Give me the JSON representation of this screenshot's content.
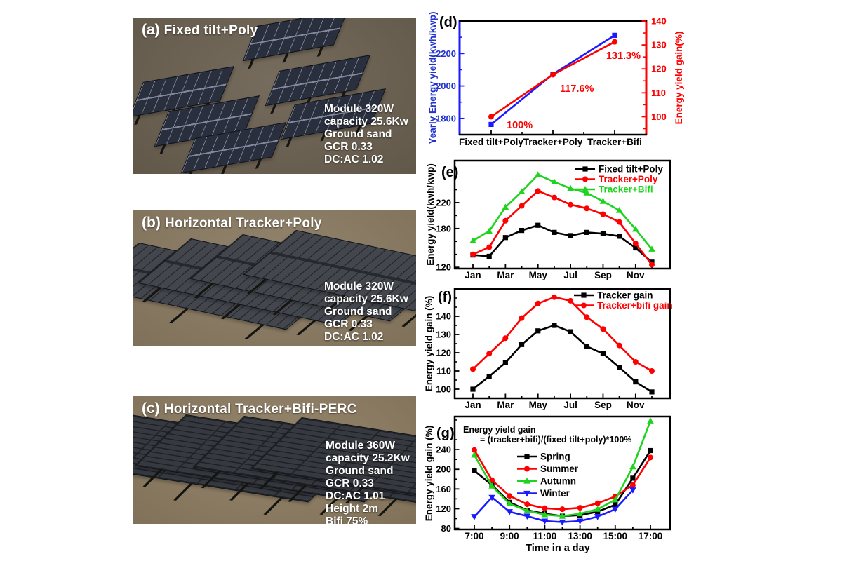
{
  "colors": {
    "blue": "#1a1aff",
    "blue_label": "#2233cc",
    "red": "#ff0000",
    "green": "#1fd41f",
    "black": "#000000",
    "white_text": "#ffffff"
  },
  "figure": {
    "panels": [
      {
        "id": "a",
        "label": "(a)",
        "title": "Fixed tilt+Poly",
        "specs": [
          "Module 320W",
          "capacity 25.6Kw",
          "Ground sand",
          "GCR 0.33",
          "DC:AC 1.02"
        ]
      },
      {
        "id": "b",
        "label": "(b)",
        "title": "Horizontal Tracker+Poly",
        "specs": [
          "Module 320W",
          "capacity 25.6Kw",
          "Ground sand",
          "GCR 0.33",
          "DC:AC 1.02"
        ]
      },
      {
        "id": "c",
        "label": "(c)",
        "title": "Horizontal Tracker+Bifi-PERC",
        "specs": [
          "Module 360W",
          "capacity 25.2Kw",
          "Ground sand",
          "GCR 0.33",
          "DC:AC 1.01",
          "Height 2m",
          "Bifi 75%"
        ]
      }
    ]
  },
  "chart_data": [
    {
      "id": "d",
      "panel_label": "(d)",
      "type": "line",
      "categories": [
        "Fixed tilt+Poly",
        "Tracker+Poly",
        "Tracker+Bifi"
      ],
      "left_axis": {
        "label": "Yearly Energy yield(kwh/kwp)",
        "color": "#2233cc",
        "ticks": [
          1800,
          2000,
          2200
        ],
        "minor_ticks": [
          1700,
          1900,
          2100,
          2300
        ],
        "range": [
          1700,
          2400
        ]
      },
      "right_axis": {
        "label": "Energy yield gain(%)",
        "color": "#ff0000",
        "ticks": [
          100,
          110,
          120,
          130,
          140
        ],
        "minor_ticks": [
          95,
          105,
          115,
          125,
          135
        ],
        "range": [
          92.5,
          140
        ]
      },
      "series": [
        {
          "name": "Yearly Energy yield",
          "axis": "left",
          "color": "#1a1aff",
          "marker": "square",
          "values": [
            1763,
            2073,
            2312
          ]
        },
        {
          "name": "Energy yield gain",
          "axis": "right",
          "color": "#ff0000",
          "marker": "circle",
          "values": [
            100,
            117.6,
            131.3
          ]
        }
      ],
      "point_labels": [
        "100%",
        "117.6%",
        "131.3%"
      ],
      "point_label_color": "#ff0000"
    },
    {
      "id": "e",
      "panel_label": "(e)",
      "type": "line",
      "x": [
        "Jan",
        "Feb",
        "Mar",
        "Apr",
        "May",
        "Jun",
        "Jul",
        "Aug",
        "Sep",
        "Oct",
        "Nov",
        "Dec"
      ],
      "x_tick_labels": [
        "Jan",
        "Mar",
        "May",
        "Jul",
        "Sep",
        "Nov"
      ],
      "ylabel": "Energy yield(kwh/kwp)",
      "yticks": [
        120,
        180,
        220
      ],
      "minor_yticks": [
        140,
        160,
        200,
        240,
        260
      ],
      "ylim": [
        118,
        285
      ],
      "legend_position": "top-right",
      "series": [
        {
          "name": "Fixed tilt+Poly",
          "color": "#000000",
          "marker": "square",
          "values": [
            139,
            137,
            166,
            177,
            185,
            174,
            169,
            174,
            172,
            168,
            150,
            128
          ]
        },
        {
          "name": "Tracker+Poly",
          "color": "#ff0000",
          "marker": "circle",
          "values": [
            140,
            151,
            192,
            215,
            238,
            228,
            217,
            211,
            202,
            190,
            157,
            124
          ]
        },
        {
          "name": "Tracker+Bifi",
          "color": "#1fd41f",
          "marker": "triangle-up",
          "values": [
            161,
            176,
            213,
            237,
            263,
            252,
            242,
            235,
            222,
            208,
            179,
            148
          ]
        }
      ]
    },
    {
      "id": "f",
      "panel_label": "(f)",
      "type": "line",
      "x": [
        "Jan",
        "Feb",
        "Mar",
        "Apr",
        "May",
        "Jun",
        "Jul",
        "Aug",
        "Sep",
        "Oct",
        "Nov",
        "Dec"
      ],
      "x_tick_labels": [
        "Jan",
        "Mar",
        "May",
        "Jul",
        "Sep",
        "Nov"
      ],
      "ylabel": "Energy yield gain (%)",
      "yticks": [
        100,
        110,
        120,
        130,
        140
      ],
      "minor_yticks": [
        95,
        105,
        115,
        125,
        135,
        145,
        150
      ],
      "ylim": [
        95,
        155
      ],
      "legend_position": "top-right",
      "series": [
        {
          "name": "Tracker gain",
          "color": "#000000",
          "marker": "square",
          "values": [
            100,
            107,
            114.5,
            124.5,
            132,
            135,
            131.5,
            123.5,
            119.5,
            112,
            104,
            98.5
          ]
        },
        {
          "name": "Tracker+bifi gain",
          "color": "#ff0000",
          "marker": "circle",
          "values": [
            111,
            119.5,
            128,
            139,
            147,
            150.5,
            148.5,
            139.5,
            133,
            124,
            115,
            110
          ]
        }
      ]
    },
    {
      "id": "g",
      "panel_label": "(g)",
      "type": "line",
      "x": [
        "7:00",
        "8:00",
        "9:00",
        "10:00",
        "11:00",
        "12:00",
        "13:00",
        "14:00",
        "15:00",
        "16:00",
        "17:00"
      ],
      "x_tick_labels": [
        "7:00",
        "9:00",
        "11:00",
        "13:00",
        "15:00",
        "17:00"
      ],
      "xlabel": "Time in a day",
      "ylabel": "Energy yield gain (%)",
      "yticks": [
        80,
        120,
        160,
        200,
        240
      ],
      "minor_yticks": [
        100,
        140,
        180,
        220,
        260,
        300
      ],
      "ylim": [
        78,
        307
      ],
      "note": [
        "Energy yield gain",
        "= (tracker+bifi)/(fixed tilt+poly)*100%"
      ],
      "legend_position": "upper-left",
      "series": [
        {
          "name": "Spring",
          "color": "#000000",
          "marker": "square",
          "values": [
            197,
            168,
            133,
            117,
            110,
            105,
            107,
            114,
            128,
            182,
            238
          ]
        },
        {
          "name": "Summer",
          "color": "#ff0000",
          "marker": "circle",
          "values": [
            239,
            178,
            146,
            129,
            121,
            119,
            122,
            131,
            145,
            168,
            224
          ]
        },
        {
          "name": "Autumn",
          "color": "#1fd41f",
          "marker": "triangle-up",
          "values": [
            229,
            166,
            130,
            116,
            108,
            105,
            110,
            119,
            138,
            205,
            298
          ]
        },
        {
          "name": "Winter",
          "color": "#1a1aff",
          "marker": "triangle-down",
          "values": [
            104,
            143,
            114,
            105,
            95,
            93,
            95,
            104,
            119,
            158,
            null
          ]
        }
      ]
    }
  ]
}
